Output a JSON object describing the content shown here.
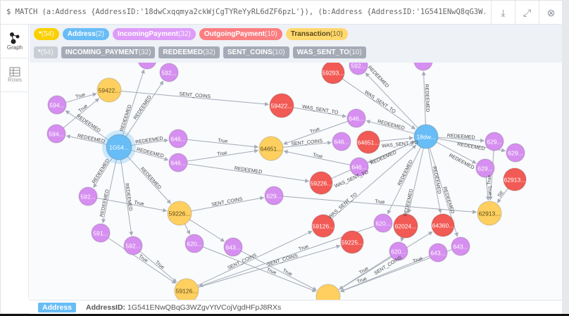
{
  "query": {
    "prompt": "$",
    "text": "MATCH (a:Address {AddressID:'18dwCxqqmya2ckWjCgTYReYyRL6dZF6pzL'}), (b:Address {AddressID:'1G541ENwQ8qG3W..."
  },
  "toolbar": {
    "download_icon": "download-icon",
    "expand_icon": "expand-icon",
    "close_icon": "close-icon"
  },
  "sidebar": {
    "items": [
      {
        "label": "Graph",
        "icon": "graph-icon",
        "active": true
      },
      {
        "label": "Rows",
        "icon": "table-icon",
        "active": false
      }
    ]
  },
  "legend": {
    "labels": [
      {
        "name": "*",
        "count": "(54)",
        "color": "#fad000"
      },
      {
        "name": "Address",
        "count": "(2)",
        "color": "#68bdf6"
      },
      {
        "name": "IncomingPayment",
        "count": "(32)",
        "color": "#de9bf9"
      },
      {
        "name": "OutgoingPayment",
        "count": "(10)",
        "color": "#fb7e81"
      },
      {
        "name": "Transaction",
        "count": "(10)",
        "color": "#ffd86e"
      }
    ],
    "relationships": [
      {
        "name": "*",
        "count": "(54)"
      },
      {
        "name": "INCOMING_PAYMENT",
        "count": "(32)"
      },
      {
        "name": "REDEEMED",
        "count": "(32)"
      },
      {
        "name": "SENT_COINS",
        "count": "(10)"
      },
      {
        "name": "WAS_SENT_TO",
        "count": "(10)"
      }
    ]
  },
  "colors": {
    "Address": "#68bdf6",
    "IncomingPayment": "#d68ff0",
    "OutgoingPayment": "#f25a55",
    "Transaction": "#ffd060"
  },
  "graph": {
    "nodes": [
      {
        "label": "1G54...",
        "type": "Address"
      },
      {
        "label": "18dw...",
        "type": "Address"
      },
      {
        "label": "59422...",
        "type": "Transaction"
      },
      {
        "label": "64651...",
        "type": "Transaction"
      },
      {
        "label": "59226...",
        "type": "Transaction"
      },
      {
        "label": "59126...",
        "type": "Transaction"
      },
      {
        "label": "62913...",
        "type": "Transaction"
      },
      {
        "label": "",
        "type": "Transaction"
      },
      {
        "label": "59422...",
        "type": "OutgoingPayment"
      },
      {
        "label": "59293...",
        "type": "OutgoingPayment"
      },
      {
        "label": "64651...",
        "type": "OutgoingPayment"
      },
      {
        "label": "59226...",
        "type": "OutgoingPayment"
      },
      {
        "label": "59126...",
        "type": "OutgoingPayment"
      },
      {
        "label": "59225...",
        "type": "OutgoingPayment"
      },
      {
        "label": "62024...",
        "type": "OutgoingPayment"
      },
      {
        "label": "64360...",
        "type": "OutgoingPayment"
      },
      {
        "label": "62913...",
        "type": "OutgoingPayment"
      },
      {
        "label": "594...",
        "type": "IncomingPayment"
      },
      {
        "label": "594...",
        "type": "IncomingPayment"
      },
      {
        "label": "592...",
        "type": "IncomingPayment"
      },
      {
        "label": "646...",
        "type": "IncomingPayment"
      },
      {
        "label": "646...",
        "type": "IncomingPayment"
      },
      {
        "label": "592...",
        "type": "IncomingPayment"
      },
      {
        "label": "591...",
        "type": "IncomingPayment"
      },
      {
        "label": "592...",
        "type": "IncomingPayment"
      },
      {
        "label": "620...",
        "type": "IncomingPayment"
      },
      {
        "label": "643...",
        "type": "IncomingPayment"
      },
      {
        "label": "629...",
        "type": "IncomingPayment"
      },
      {
        "label": "646...",
        "type": "IncomingPayment"
      },
      {
        "label": "646...",
        "type": "IncomingPayment"
      },
      {
        "label": "646...",
        "type": "IncomingPayment"
      },
      {
        "label": "592...",
        "type": "IncomingPayment"
      },
      {
        "label": "620...",
        "type": "IncomingPayment"
      },
      {
        "label": "620...",
        "type": "IncomingPayment"
      },
      {
        "label": "643...",
        "type": "IncomingPayment"
      },
      {
        "label": "643...",
        "type": "IncomingPayment"
      },
      {
        "label": "629...",
        "type": "IncomingPayment"
      },
      {
        "label": "629...",
        "type": "IncomingPayment"
      },
      {
        "label": "629...",
        "type": "IncomingPayment"
      },
      {
        "label": "",
        "type": "IncomingPayment"
      },
      {
        "label": "",
        "type": "IncomingPayment"
      }
    ],
    "edges": [
      {
        "from": 0,
        "to": 17,
        "label": "REDEEMED"
      },
      {
        "from": 0,
        "to": 18,
        "label": "REDEEMED"
      },
      {
        "from": 17,
        "to": 2,
        "label": "True"
      },
      {
        "from": 18,
        "to": 2,
        "label": "True"
      },
      {
        "from": 0,
        "to": 19,
        "label": "REDEEMED"
      },
      {
        "from": 0,
        "to": 39,
        "label": "REDEEMED"
      },
      {
        "from": 0,
        "to": 20,
        "label": "REDEEMED"
      },
      {
        "from": 0,
        "to": 21,
        "label": "REDEEMED"
      },
      {
        "from": 20,
        "to": 3,
        "label": "True"
      },
      {
        "from": 21,
        "to": 3,
        "label": "True"
      },
      {
        "from": 2,
        "to": 8,
        "label": "SENT_COINS"
      },
      {
        "from": 8,
        "to": 28,
        "label": "WAS_SENT_TO"
      },
      {
        "from": 0,
        "to": 22,
        "label": "REDEEMED"
      },
      {
        "from": 0,
        "to": 23,
        "label": "REDEEMED"
      },
      {
        "from": 0,
        "to": 24,
        "label": "REDEEMED"
      },
      {
        "from": 0,
        "to": 4,
        "label": "REDEEMED"
      },
      {
        "from": 22,
        "to": 4,
        "label": "True"
      },
      {
        "from": 4,
        "to": 25,
        "label": ""
      },
      {
        "from": 4,
        "to": 26,
        "label": ""
      },
      {
        "from": 4,
        "to": 27,
        "label": "SENT_COINS"
      },
      {
        "from": 23,
        "to": 5,
        "label": "True"
      },
      {
        "from": 24,
        "to": 5,
        "label": "True"
      },
      {
        "from": 21,
        "to": 11,
        "label": "REDEEMED"
      },
      {
        "from": 27,
        "to": 6,
        "label": "True"
      },
      {
        "from": 3,
        "to": 29,
        "label": "SENT_COINS"
      },
      {
        "from": 28,
        "to": 3,
        "label": "True"
      },
      {
        "from": 30,
        "to": 3,
        "label": "True"
      },
      {
        "from": 1,
        "to": 28,
        "label": "REDEEMED"
      },
      {
        "from": 10,
        "to": 1,
        "label": "WAS_SENT_TO"
      },
      {
        "from": 1,
        "to": 30,
        "label": "REDEEMED"
      },
      {
        "from": 9,
        "to": 1,
        "label": "WAS_SENT_TO"
      },
      {
        "from": 1,
        "to": 31,
        "label": "REDEEMED"
      },
      {
        "from": 1,
        "to": 40,
        "label": "REDEEMED"
      },
      {
        "from": 1,
        "to": 36,
        "label": "REDEEMED"
      },
      {
        "from": 1,
        "to": 37,
        "label": "REDEEMED"
      },
      {
        "from": 1,
        "to": 38,
        "label": "REDEEMED"
      },
      {
        "from": 11,
        "to": 1,
        "label": "WAS_SENT_TO"
      },
      {
        "from": 12,
        "to": 1,
        "label": "WAS_SENT_TO"
      },
      {
        "from": 1,
        "to": 32,
        "label": "REDEEMED"
      },
      {
        "from": 1,
        "to": 14,
        "label": "REDEEMED"
      },
      {
        "from": 1,
        "to": 15,
        "label": "REDEEMED"
      },
      {
        "from": 1,
        "to": 35,
        "label": "REDEEMED"
      },
      {
        "from": 14,
        "to": 33,
        "label": ""
      },
      {
        "from": 36,
        "to": 6,
        "label": "True"
      },
      {
        "from": 38,
        "to": 6,
        "label": "True"
      },
      {
        "from": 16,
        "to": 6,
        "label": "SE"
      },
      {
        "from": 5,
        "to": 12,
        "label": "SENT_COINS"
      },
      {
        "from": 5,
        "to": 13,
        "label": "SENT_COINS"
      },
      {
        "from": 32,
        "to": 5,
        "label": "True"
      },
      {
        "from": 33,
        "to": 7,
        "label": "True"
      },
      {
        "from": 26,
        "to": 7,
        "label": "True"
      },
      {
        "from": 25,
        "to": 7,
        "label": "True"
      },
      {
        "from": 7,
        "to": 15,
        "label": "SENT_COINS"
      },
      {
        "from": 34,
        "to": 7,
        "label": "True"
      },
      {
        "from": 35,
        "to": 7,
        "label": "True"
      }
    ]
  },
  "status": {
    "tag": "Address",
    "key": "AddressID:",
    "value": "1G541ENwQBqG3WZgvYtVCojVgdHFpJ8RXs"
  }
}
